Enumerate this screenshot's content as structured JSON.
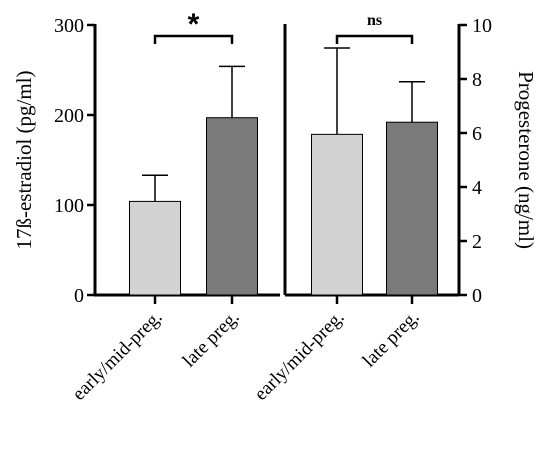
{
  "chart_data": {
    "type": "bar",
    "panels": [
      {
        "ylabel": "17ß-estradiol (pg/ml)",
        "ylim": [
          0,
          300
        ],
        "ytick_labels": [
          "0",
          "100",
          "200",
          "300"
        ],
        "categories": [
          "early/mid-preg.",
          "late preg."
        ],
        "values": [
          104,
          197
        ],
        "error_upper": [
          133,
          254
        ],
        "colors": [
          "#d3d3d3",
          "#7a7a7a"
        ],
        "significance": "*"
      },
      {
        "ylabel": "Progesterone (ng/ml)",
        "ylim": [
          0,
          10
        ],
        "ytick_labels": [
          "0",
          "2",
          "4",
          "6",
          "8",
          "10"
        ],
        "categories": [
          "early/mid-preg.",
          "late preg."
        ],
        "values": [
          5.95,
          6.4
        ],
        "error_upper": [
          9.15,
          7.9
        ],
        "colors": [
          "#d3d3d3",
          "#7a7a7a"
        ],
        "significance": "ns"
      }
    ]
  }
}
